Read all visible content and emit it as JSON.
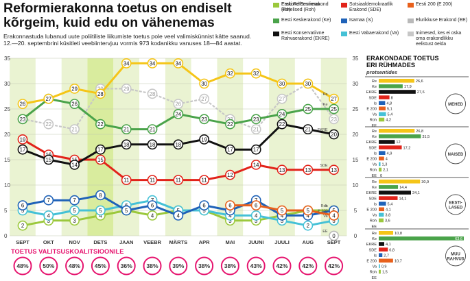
{
  "header": {
    "title": "Reformierakonna toetus on endiselt kõrgeim, kuid edu on vähenemas",
    "subtitle": "Erakonnastuda lubanud uute poliitiliste liikumiste toetus pole veel valimiskünnist kätte saanud.",
    "method": "12.—20. septembrini küsitleti veebiintervjuu vormis 973 kodanikku vanuses 18—84 aastat."
  },
  "legend": [
    {
      "label": "Eesti Reformi-erakond (Re)",
      "color": "#f5c518"
    },
    {
      "label": "Sotsiaaldemokraatlik Erakond (SDE)",
      "color": "#e2231a"
    },
    {
      "label": "Eesti 200 (E 200)",
      "color": "#e8601c"
    },
    {
      "label": "Eesti Keskerakond (Ke)",
      "color": "#4aa34a"
    },
    {
      "label": "Isamaa (Is)",
      "color": "#1f62b8"
    },
    {
      "label": "Elurikkuse Erakond (EE)",
      "color": "#b9b9b9"
    },
    {
      "label": "Eesti Konservatiivne Rahvaerakond (EKRE)",
      "color": "#111111"
    },
    {
      "label": "Eesti Vabaerakond (Va)",
      "color": "#45c1d6"
    },
    {
      "label": "Inimesed, kes ei oska oma erakondlikku eelistust öelda",
      "color": "#c7c7c7"
    },
    {
      "label": "Erakond Eestimaa Rohelised (Roh)",
      "color": "#9bc83c"
    }
  ],
  "colors": {
    "shade": "#eaf3d2",
    "highlight": "#d9ec9e",
    "coalition_pink": "#e6156f",
    "ticks": "#333333"
  },
  "chart_data": {
    "type": "line",
    "x": [
      "SEPT",
      "OKT",
      "NOV",
      "DETS",
      "JAAN",
      "VEEBR",
      "MÄRTS",
      "APR",
      "MAI",
      "JUUNI",
      "JUULI",
      "AUG",
      "SEPT"
    ],
    "ylim": [
      0,
      35
    ],
    "yticks": [
      0,
      5,
      10,
      15,
      20,
      25,
      30,
      35
    ],
    "grid": true,
    "series": [
      {
        "name": "Re",
        "color": "#f5c518",
        "values": [
          26,
          27,
          29,
          28,
          34,
          34,
          34,
          30,
          32,
          32,
          30,
          30,
          27
        ]
      },
      {
        "name": "Ke",
        "color": "#4aa34a",
        "values": [
          23,
          27,
          26,
          22,
          21,
          21,
          24,
          23,
          22,
          23,
          24,
          25,
          25
        ]
      },
      {
        "name": "EKRE",
        "color": "#111111",
        "values": [
          17,
          15,
          14,
          17,
          18,
          18,
          18,
          19,
          17,
          17,
          22,
          21,
          20
        ]
      },
      {
        "name": "SDE",
        "color": "#e2231a",
        "values": [
          19,
          16,
          15,
          15,
          11,
          11,
          11,
          11,
          12,
          14,
          13,
          13,
          13
        ]
      },
      {
        "name": "Is",
        "color": "#1f62b8",
        "values": [
          6,
          7,
          7,
          8,
          5,
          6,
          4,
          6,
          5,
          7,
          4,
          4,
          5
        ]
      },
      {
        "name": "Va",
        "color": "#45c1d6",
        "values": [
          5,
          4,
          5,
          5,
          6,
          7,
          5,
          5,
          4,
          4,
          3,
          2,
          3
        ]
      },
      {
        "name": "Roh",
        "color": "#9bc83c",
        "values": [
          2,
          3,
          3,
          4,
          5,
          4,
          5,
          5,
          3,
          3,
          4,
          5,
          5
        ]
      },
      {
        "name": "E 200",
        "color": "#e8601c",
        "values": [
          null,
          null,
          null,
          null,
          null,
          null,
          null,
          null,
          6,
          6,
          5,
          5,
          4
        ]
      },
      {
        "name": "EE",
        "color": "#b9b9b9",
        "values": [
          null,
          null,
          null,
          null,
          null,
          null,
          null,
          null,
          null,
          null,
          null,
          null,
          0
        ]
      },
      {
        "name": "",
        "color": "#c7c7c7",
        "values": [
          23,
          22,
          21,
          29,
          29,
          28,
          26,
          27,
          23,
          21,
          27,
          30,
          23
        ]
      }
    ],
    "end_labels": [
      "Re",
      "Ke",
      "EKRE",
      "SDE",
      "Is",
      "Va",
      "Roh",
      "E 200",
      "EE"
    ],
    "highlight_col": 3,
    "coalition": {
      "label": "TOETUS VALITSUSKOALITSIOONILE",
      "values": [
        "48%",
        "50%",
        "48%",
        "45%",
        "36%",
        "38%",
        "39%",
        "38%",
        "38%",
        "43%",
        "42%",
        "42%",
        "42%"
      ]
    }
  },
  "side_chart": {
    "type": "bar",
    "title_line1": "ERAKONDADE TOETUS",
    "title_line2": "ERI RÜHMADES",
    "unit": "protsentides",
    "xlim": [
      0,
      63.6
    ],
    "party_order": [
      "Re",
      "Ke",
      "EKRE",
      "SDE",
      "Is",
      "E 200",
      "Va",
      "Roh",
      "EE"
    ],
    "party_colors": {
      "Re": "#f5c518",
      "Ke": "#4aa34a",
      "EKRE": "#111111",
      "SDE": "#e2231a",
      "Is": "#1f62b8",
      "E 200": "#e8601c",
      "Va": "#45c1d6",
      "Roh": "#9bc83c",
      "EE": "#b9b9b9"
    },
    "groups": [
      {
        "name": "MEHED",
        "values": [
          26.6,
          17.9,
          27.6,
          8,
          4.8,
          5.1,
          5.4,
          4.2,
          null
        ]
      },
      {
        "name": "NAISED",
        "values": [
          26.8,
          31.5,
          12,
          17.2,
          4.9,
          4,
          1.3,
          2.1,
          0
        ]
      },
      {
        "name": "EESTI-LASED",
        "values": [
          30.9,
          14.4,
          24.1,
          14.1,
          5.4,
          4.1,
          3.8,
          3.6,
          null
        ]
      },
      {
        "name": "MUU RAHVUS",
        "values": [
          10.8,
          63.6,
          4.1,
          6.8,
          2.7,
          10.7,
          0.9,
          1.5,
          null
        ]
      }
    ]
  }
}
